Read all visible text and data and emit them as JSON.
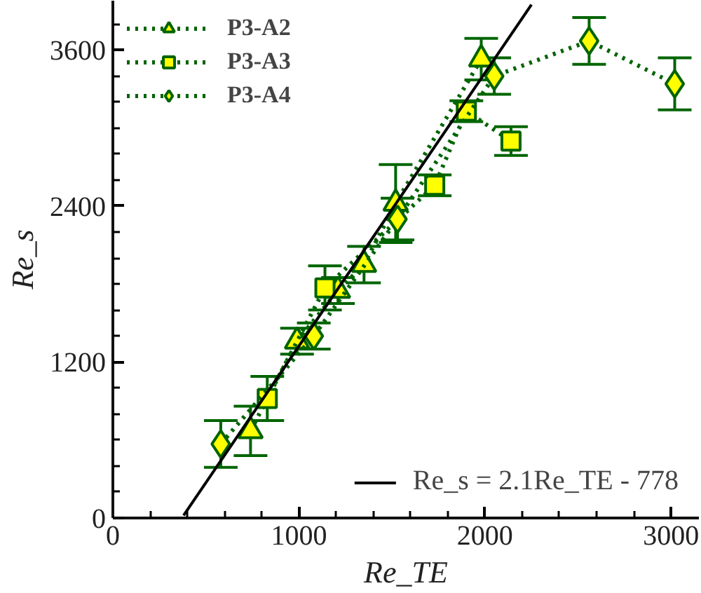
{
  "chart_data": {
    "type": "line",
    "xlabel": "Re_TE",
    "ylabel": "Re_s",
    "xlim": [
      0,
      3150
    ],
    "ylim": [
      0,
      3980
    ],
    "xticks": [
      0,
      1000,
      2000,
      3000
    ],
    "yticks": [
      0,
      1200,
      2400,
      3600
    ],
    "grid": false,
    "legend": "top left",
    "line_style": "dotted",
    "series": [
      {
        "name": "P3-A2",
        "marker": "triangle",
        "color": "#006400",
        "x": [
          740,
          990,
          1210,
          1350,
          1520,
          1980
        ],
        "values": [
          670,
          1360,
          1750,
          1950,
          2420,
          3530
        ],
        "errors": [
          190,
          100,
          100,
          140,
          300,
          160
        ]
      },
      {
        "name": "P3-A3",
        "marker": "square",
        "color": "#006400",
        "x": [
          830,
          1140,
          1730,
          1900,
          2140
        ],
        "values": [
          920,
          1770,
          2560,
          3130,
          2900
        ],
        "errors": [
          170,
          170,
          80,
          80,
          110
        ]
      },
      {
        "name": "P3-A4",
        "marker": "diamond",
        "color": "#006400",
        "x": [
          580,
          1080,
          1530,
          2050,
          2560,
          3020
        ],
        "values": [
          570,
          1400,
          2300,
          3400,
          3670,
          3340
        ],
        "errors": [
          180,
          100,
          160,
          140,
          180,
          200
        ]
      },
      {
        "name": "Re_s = 2.1Re_TE - 778",
        "marker": "none",
        "line_style": "solid",
        "color": "#000000",
        "x": [
          380,
          2250
        ],
        "values": [
          20,
          3950
        ]
      }
    ]
  }
}
